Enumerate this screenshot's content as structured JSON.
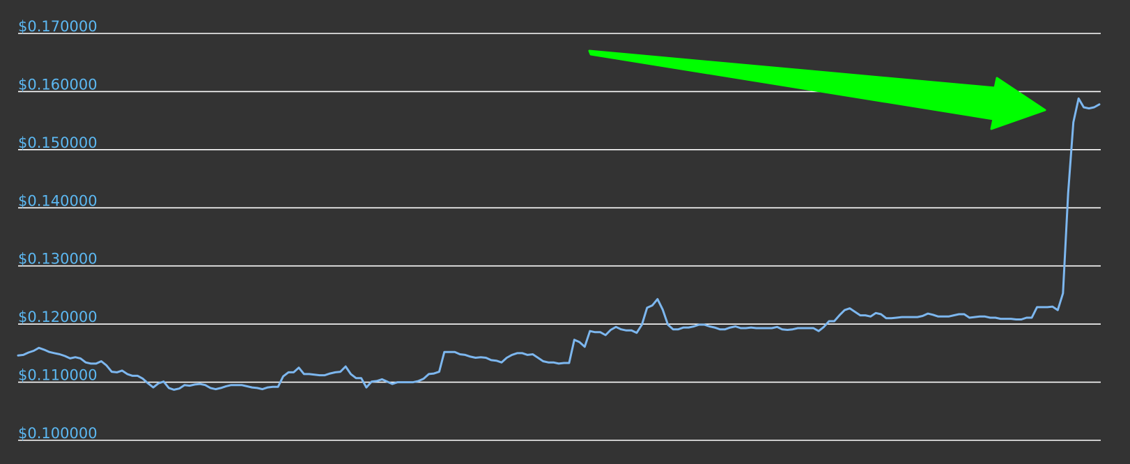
{
  "chart_data": {
    "type": "line",
    "title": "",
    "xlabel": "",
    "ylabel": "",
    "ylim": [
      0.1,
      0.17
    ],
    "y_ticks": [
      {
        "value": 0.17,
        "label": "$0.170000"
      },
      {
        "value": 0.16,
        "label": "$0.160000"
      },
      {
        "value": 0.15,
        "label": "$0.150000"
      },
      {
        "value": 0.14,
        "label": "$0.140000"
      },
      {
        "value": 0.13,
        "label": "$0.130000"
      },
      {
        "value": 0.12,
        "label": "$0.120000"
      },
      {
        "value": 0.11,
        "label": "$0.110000"
      },
      {
        "value": 0.1,
        "label": "$0.100000"
      }
    ],
    "grid": true,
    "series": [
      {
        "name": "",
        "values": [
          0.1146,
          0.1147,
          0.1151,
          0.1154,
          0.1159,
          0.1156,
          0.1152,
          0.115,
          0.1148,
          0.1145,
          0.1141,
          0.1143,
          0.1141,
          0.1134,
          0.1132,
          0.1132,
          0.1136,
          0.1129,
          0.1118,
          0.1117,
          0.112,
          0.1114,
          0.1111,
          0.1111,
          0.1106,
          0.1098,
          0.1091,
          0.1098,
          0.1101,
          0.109,
          0.1087,
          0.1089,
          0.1095,
          0.1094,
          0.1096,
          0.1097,
          0.1095,
          0.109,
          0.1088,
          0.109,
          0.1093,
          0.1095,
          0.1095,
          0.1095,
          0.1093,
          0.1091,
          0.109,
          0.1088,
          0.1091,
          0.1092,
          0.1092,
          0.111,
          0.1117,
          0.1117,
          0.1125,
          0.1114,
          0.1114,
          0.1113,
          0.1112,
          0.1112,
          0.1115,
          0.1117,
          0.1118,
          0.1127,
          0.1114,
          0.1107,
          0.1107,
          0.1091,
          0.1101,
          0.1102,
          0.1105,
          0.1101,
          0.1097,
          0.11,
          0.11,
          0.11,
          0.11,
          0.1102,
          0.1106,
          0.1114,
          0.1115,
          0.1118,
          0.1152,
          0.1152,
          0.1152,
          0.1148,
          0.1147,
          0.1144,
          0.1142,
          0.1143,
          0.1142,
          0.1138,
          0.1137,
          0.1134,
          0.1142,
          0.1147,
          0.115,
          0.115,
          0.1147,
          0.1148,
          0.1142,
          0.1136,
          0.1134,
          0.1134,
          0.1132,
          0.1133,
          0.1133,
          0.1173,
          0.1169,
          0.1161,
          0.1188,
          0.1186,
          0.1186,
          0.1181,
          0.119,
          0.1195,
          0.1191,
          0.1189,
          0.1189,
          0.1185,
          0.1199,
          0.1228,
          0.1232,
          0.1243,
          0.1225,
          0.1199,
          0.1191,
          0.1191,
          0.1194,
          0.1194,
          0.1196,
          0.1199,
          0.1199,
          0.1196,
          0.1194,
          0.1191,
          0.1191,
          0.1194,
          0.1196,
          0.1193,
          0.1193,
          0.1194,
          0.1193,
          0.1193,
          0.1193,
          0.1193,
          0.1195,
          0.1191,
          0.119,
          0.1191,
          0.1193,
          0.1193,
          0.1193,
          0.1193,
          0.1188,
          0.1195,
          0.1205,
          0.1205,
          0.1215,
          0.1224,
          0.1227,
          0.1221,
          0.1215,
          0.1215,
          0.1213,
          0.1219,
          0.1217,
          0.121,
          0.121,
          0.1211,
          0.1212,
          0.1212,
          0.1212,
          0.1212,
          0.1214,
          0.1218,
          0.1216,
          0.1213,
          0.1213,
          0.1213,
          0.1215,
          0.1217,
          0.1217,
          0.1211,
          0.1212,
          0.1213,
          0.1213,
          0.1211,
          0.1211,
          0.1209,
          0.1209,
          0.1209,
          0.1208,
          0.1208,
          0.1211,
          0.1211,
          0.1229,
          0.1229,
          0.1229,
          0.123,
          0.1224,
          0.1253,
          0.1425,
          0.1547,
          0.1588,
          0.1573,
          0.1571,
          0.1573,
          0.1578
        ]
      }
    ],
    "annotations": [
      {
        "type": "arrow",
        "color": "#00ff00",
        "description": "green arrow pointing at the price spike"
      }
    ]
  },
  "colors": {
    "background": "#333333",
    "gridline": "#ffffff",
    "tick_label": "#5cb8f2",
    "line": "#7db7ef",
    "arrow": "#00ff00"
  }
}
